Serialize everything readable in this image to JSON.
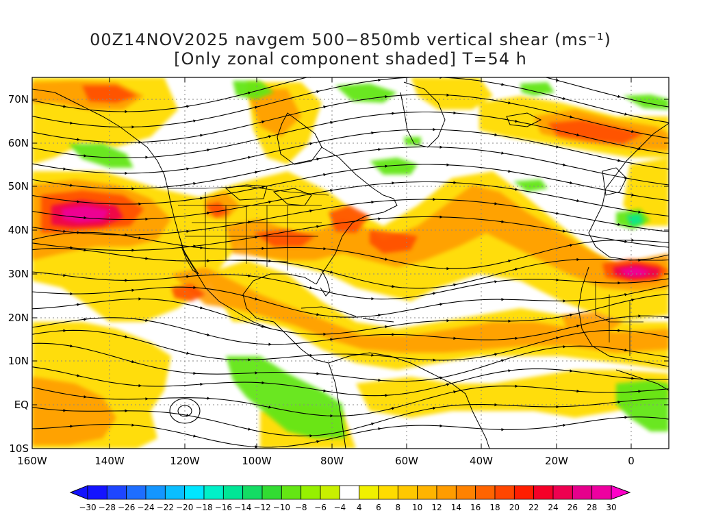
{
  "title": {
    "line1": "00Z14NOV2025 navgem 500−850mb vertical shear (ms⁻¹)",
    "line2": "[Only zonal component shaded] T=54 h"
  },
  "axes": {
    "lat_labels": [
      "70N",
      "60N",
      "50N",
      "40N",
      "30N",
      "20N",
      "10N",
      "EQ",
      "10S"
    ],
    "lat_values": [
      70,
      60,
      50,
      40,
      30,
      20,
      10,
      0,
      -10
    ],
    "lon_labels": [
      "160W",
      "140W",
      "120W",
      "100W",
      "80W",
      "60W",
      "40W",
      "20W",
      "0"
    ],
    "lon_values": [
      -160,
      -140,
      -120,
      -100,
      -80,
      -60,
      -40,
      -20,
      0
    ],
    "lon_range": [
      -160,
      10
    ],
    "lat_range": [
      -10,
      75
    ]
  },
  "colorbar": {
    "labels": [
      "-30",
      "-28",
      "-26",
      "-24",
      "-22",
      "-20",
      "-18",
      "-16",
      "-14",
      "-12",
      "-10",
      "-8",
      "-6",
      "-4",
      "4",
      "6",
      "8",
      "10",
      "12",
      "14",
      "16",
      "18",
      "20",
      "22",
      "24",
      "26",
      "28",
      "30"
    ],
    "colors": [
      "#1414ff",
      "#1e46ff",
      "#1e6eff",
      "#1496ff",
      "#0abeff",
      "#00e6ff",
      "#00f0c8",
      "#00e696",
      "#14dc64",
      "#32dc32",
      "#64e614",
      "#96f000",
      "#c8f000",
      "#ffffff",
      "#f0f000",
      "#ffdc00",
      "#ffc800",
      "#ffb400",
      "#ff9c00",
      "#ff8200",
      "#ff6400",
      "#ff4600",
      "#ff1e00",
      "#f50028",
      "#ee0050",
      "#e6008c",
      "#ee00a0"
    ],
    "end_left": "#1414ff",
    "end_right": "#ff00c8"
  }
}
